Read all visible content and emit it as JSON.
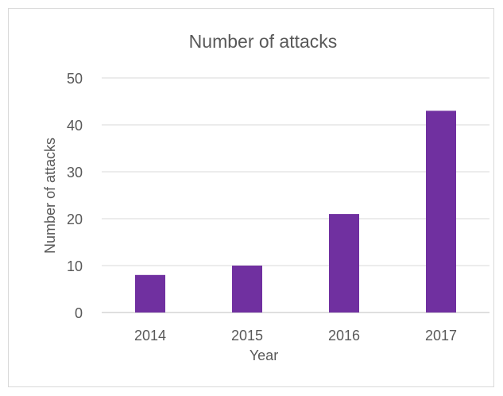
{
  "chart_data": {
    "type": "bar",
    "title": "Number of attacks",
    "xlabel": "Year",
    "ylabel": "Number of attacks",
    "categories": [
      "2014",
      "2015",
      "2016",
      "2017"
    ],
    "series": [
      {
        "values": [
          8,
          10,
          21,
          43
        ]
      }
    ],
    "ylim": [
      0,
      50
    ],
    "yticks": [
      0,
      10,
      20,
      30,
      40,
      50
    ],
    "grid": true,
    "legend": "none",
    "colors": {
      "bar": "#7030a0",
      "grid": "#d9d9d9",
      "text": "#595959"
    }
  }
}
